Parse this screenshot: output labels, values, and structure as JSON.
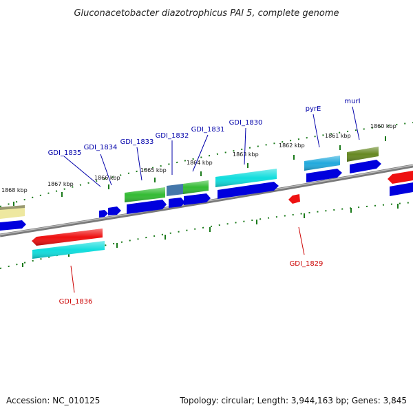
{
  "title": "Gluconacetobacter diazotrophicus PAl 5, complete genome",
  "footer": {
    "accession": "Accession: NC_010125",
    "summary": "Topology: circular; Length: 3,944,163 bp; Genes: 3,845"
  },
  "scale_labels": [
    "1868 kbp",
    "1867 kbp",
    "1866 kbp",
    "1865 kbp",
    "1864 kbp",
    "1863 kbp",
    "1862 kbp",
    "1861 kbp",
    "1860 kbp"
  ],
  "forward_gene_labels": [
    "GDI_1835",
    "GDI_1834",
    "GDI_1833",
    "GDI_1832",
    "GDI_1831",
    "GDI_1830",
    "pyrE",
    "murI"
  ],
  "reverse_gene_labels": [
    "GDI_1836",
    "GDI_1829"
  ],
  "colors": {
    "forward_label": "#0000aa",
    "reverse_label": "#cc0000",
    "tick": "#1a7a1a",
    "backbone": "#808080",
    "cds": "#0000dd",
    "red_feature": "#ee1111",
    "cyan_feature": "#11dddd",
    "green_feature": "#33bb33",
    "lightblue_feature": "#22aadd",
    "olive_feature": "#668822",
    "steel_feature": "#4477aa",
    "yellow_feature": "#eee8a0"
  }
}
